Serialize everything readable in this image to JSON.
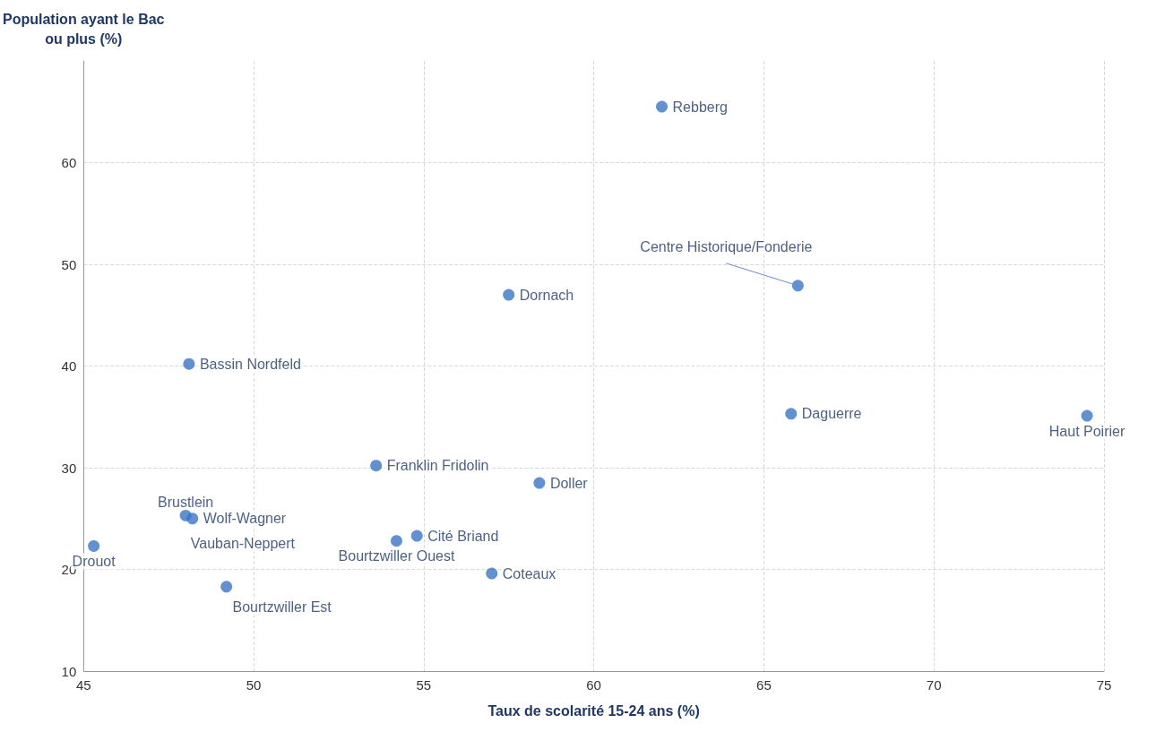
{
  "chart_data": {
    "type": "scatter",
    "xlabel": "Taux de scolarité 15-24 ans (%)",
    "ylabel": "Population ayant le Bac\nou plus (%)",
    "series": [
      {
        "color": "#3a75c4",
        "x": [
          62.0,
          66.0,
          57.5,
          48.1,
          65.8,
          74.5,
          53.6,
          58.4,
          48.0,
          48.2,
          48.1,
          45.3,
          54.2,
          54.8,
          57.0,
          49.2
        ],
        "values": [
          65.5,
          47.9,
          47.0,
          40.2,
          35.3,
          35.1,
          30.2,
          28.5,
          25.3,
          25.0,
          null,
          22.3,
          22.8,
          23.3,
          19.6,
          18.3
        ]
      }
    ],
    "annotations": [
      {
        "text": "Rebberg",
        "x": 62.0,
        "y": 65.5
      },
      {
        "text": "Centre Historique/Fonderie",
        "x": 66.0,
        "y": 47.9
      },
      {
        "text": "Dornach",
        "x": 57.5,
        "y": 47.0
      },
      {
        "text": "Bassin Nordfeld",
        "x": 48.1,
        "y": 40.2
      },
      {
        "text": "Daguerre",
        "x": 65.8,
        "y": 35.3
      },
      {
        "text": "Haut Poirier",
        "x": 74.5,
        "y": 35.1
      },
      {
        "text": "Franklin Fridolin",
        "x": 53.6,
        "y": 30.2
      },
      {
        "text": "Doller",
        "x": 58.4,
        "y": 28.5
      },
      {
        "text": "Brustlein",
        "x": 48.0,
        "y": 25.3
      },
      {
        "text": "Wolf-Wagner",
        "x": 48.2,
        "y": 25.0
      },
      {
        "text": "Vauban-Neppert",
        "x": 48.1,
        "y": 24.9
      },
      {
        "text": "Drouot",
        "x": 45.3,
        "y": 22.3
      },
      {
        "text": "Bourtzwiller Ouest",
        "x": 54.2,
        "y": 22.8
      },
      {
        "text": "Cité Briand",
        "x": 54.8,
        "y": 23.3
      },
      {
        "text": "Coteaux",
        "x": 57.0,
        "y": 19.6
      },
      {
        "text": "Bourtzwiller Est",
        "x": 49.2,
        "y": 18.3
      }
    ],
    "xlim": [
      45,
      75
    ],
    "xticks": [
      45,
      50,
      55,
      60,
      65,
      70,
      75
    ],
    "ylim": [
      10,
      70
    ],
    "yticks": [
      10,
      20,
      30,
      40,
      50,
      60
    ],
    "grid": true,
    "marker": "circle"
  }
}
